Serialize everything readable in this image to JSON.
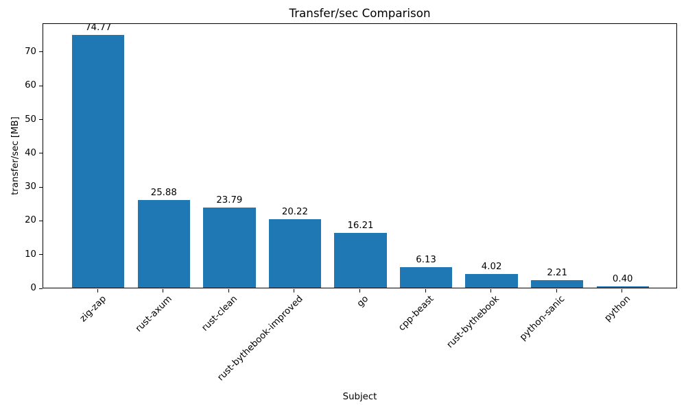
{
  "chart_data": {
    "type": "bar",
    "title": "Transfer/sec Comparison",
    "xlabel": "Subject",
    "ylabel": "transfer/sec [MB]",
    "categories": [
      "zig-zap",
      "rust-axum",
      "rust-clean",
      "rust-bythebook-improved",
      "go",
      "cpp-beast",
      "rust-bythebook",
      "python-sanic",
      "python"
    ],
    "values": [
      74.77,
      25.88,
      23.79,
      20.22,
      16.21,
      6.13,
      4.02,
      2.21,
      0.4
    ],
    "value_labels": [
      "74.77",
      "25.88",
      "23.79",
      "20.22",
      "16.21",
      "6.13",
      "4.02",
      "2.21",
      "0.40"
    ],
    "yticks": [
      0,
      10,
      20,
      30,
      40,
      50,
      60,
      70
    ],
    "ylim": [
      0,
      78.5
    ],
    "bar_color": "#1f77b4",
    "grid": false,
    "legend": false,
    "x_tick_rotation_deg": 45
  }
}
